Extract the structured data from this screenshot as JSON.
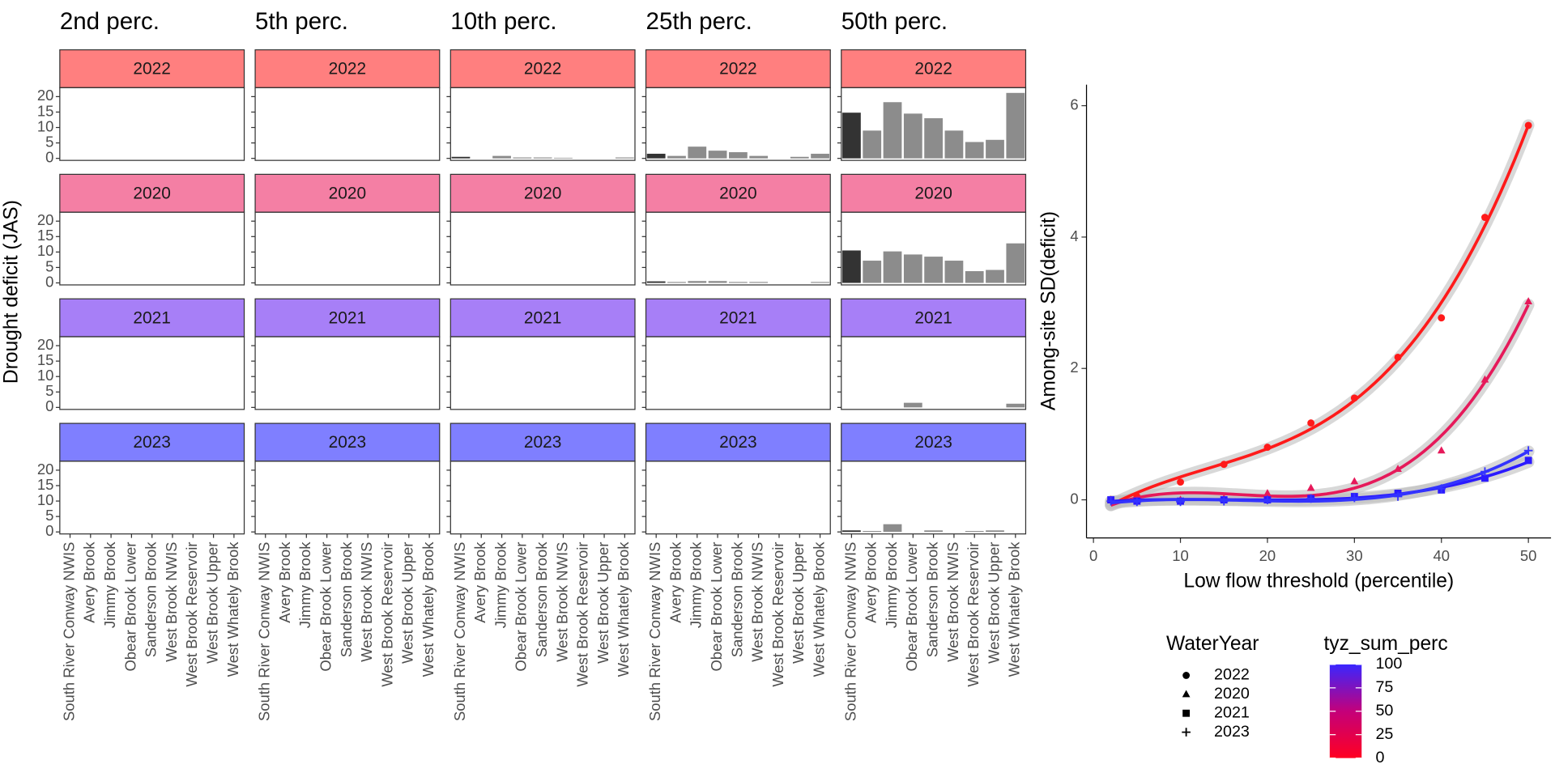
{
  "chart_data": [
    {
      "type": "facet-bar",
      "ylabel": "Drought deficit (JAS)",
      "columns": [
        "2nd perc.",
        "5th perc.",
        "10th perc.",
        "25th perc.",
        "50th perc."
      ],
      "categories": [
        "South River Conway NWIS",
        "Avery Brook",
        "Jimmy Brook",
        "Obear Brook Lower",
        "Sanderson Brook",
        "West Brook NWIS",
        "West Brook Reservoir",
        "West Brook Upper",
        "West Whately Brook"
      ],
      "bar_colors": [
        "#333333",
        "#8c8c8c",
        "#8c8c8c",
        "#8c8c8c",
        "#8c8c8c",
        "#8c8c8c",
        "#8c8c8c",
        "#8c8c8c",
        "#8c8c8c"
      ],
      "ylim": [
        -0.65,
        22.9
      ],
      "yticks": [
        0,
        5,
        10,
        15,
        20
      ],
      "rows": [
        {
          "label": "2022",
          "color": "#ff7f7f",
          "values": [
            [
              0,
              0,
              0,
              0,
              0,
              0,
              0,
              0,
              0
            ],
            [
              0,
              0,
              0,
              0,
              0,
              0,
              0,
              0,
              0
            ],
            [
              0.5,
              0,
              0.8,
              0.3,
              0.3,
              0.2,
              0,
              0,
              0.3
            ],
            [
              1.5,
              0.8,
              3.8,
              2.5,
              2,
              0.8,
              0,
              0.5,
              1.5
            ],
            [
              14.8,
              9,
              18.2,
              14.5,
              13,
              9,
              5.3,
              6,
              21.2
            ]
          ]
        },
        {
          "label": "2020",
          "color": "#f47fa4",
          "values": [
            [
              0,
              0,
              0,
              0,
              0,
              0,
              0,
              0,
              0
            ],
            [
              0,
              0,
              0,
              0,
              0,
              0,
              0,
              0,
              0
            ],
            [
              0,
              0,
              0,
              0,
              0,
              0,
              0,
              0,
              0
            ],
            [
              0.5,
              0.3,
              0.6,
              0.6,
              0.3,
              0.3,
              0,
              0,
              0.3
            ],
            [
              10.5,
              7.2,
              10.2,
              9.2,
              8.5,
              7.2,
              3.8,
              4.2,
              12.8
            ]
          ]
        },
        {
          "label": "2021",
          "color": "#a77ff7",
          "values": [
            [
              0,
              0,
              0,
              0,
              0,
              0,
              0,
              0,
              0
            ],
            [
              0,
              0,
              0,
              0,
              0,
              0,
              0,
              0,
              0
            ],
            [
              0,
              0,
              0,
              0,
              0,
              0,
              0,
              0,
              0
            ],
            [
              0,
              0,
              0,
              0,
              0,
              0,
              0,
              0,
              0
            ],
            [
              0,
              0,
              0,
              1.5,
              0,
              0,
              0,
              0,
              1.2
            ]
          ]
        },
        {
          "label": "2023",
          "color": "#7f7fff",
          "values": [
            [
              0,
              0,
              0,
              0,
              0,
              0,
              0,
              0,
              0
            ],
            [
              0,
              0,
              0,
              0,
              0,
              0,
              0,
              0,
              0
            ],
            [
              0,
              0,
              0,
              0,
              0,
              0,
              0,
              0,
              0
            ],
            [
              0,
              0,
              0,
              0,
              0,
              0,
              0,
              0,
              0
            ],
            [
              0.5,
              0.3,
              2.5,
              0,
              0.5,
              0,
              0.3,
              0.5,
              0
            ]
          ]
        }
      ]
    },
    {
      "type": "scatter-smooth",
      "xlabel": "Low flow threshold (percentile)",
      "ylabel": "Among-site SD(deficit)",
      "x": [
        2,
        5,
        10,
        15,
        20,
        25,
        30,
        35,
        40,
        45,
        50
      ],
      "xlim": [
        -0.8,
        52.6
      ],
      "xticks": [
        0,
        10,
        20,
        30,
        40,
        50
      ],
      "ylim": [
        -0.58,
        6.32
      ],
      "yticks": [
        0,
        2,
        4,
        6
      ],
      "band_color": "#bebebe",
      "shape_legend_title": "WaterYear",
      "series": [
        {
          "name": "2022",
          "shape": "circle",
          "color": "#ff1a1a",
          "values": [
            0,
            0.05,
            0.27,
            0.54,
            0.8,
            1.17,
            1.55,
            2.17,
            2.77,
            4.3,
            5.7
          ]
        },
        {
          "name": "2020",
          "shape": "triangle",
          "color": "#e6195a",
          "values": [
            0,
            0,
            0,
            0.02,
            0.1,
            0.18,
            0.28,
            0.47,
            0.75,
            1.83,
            3.02
          ]
        },
        {
          "name": "2021",
          "shape": "square",
          "color": "#2b1aff",
          "values": [
            0,
            -0.02,
            -0.02,
            0,
            0,
            0.02,
            0.05,
            0.1,
            0.15,
            0.33,
            0.6
          ]
        },
        {
          "name": "2023",
          "shape": "plus",
          "color": "#3333ff",
          "values": [
            -0.02,
            -0.03,
            -0.03,
            -0.02,
            0,
            0.02,
            0.03,
            0.05,
            0.17,
            0.43,
            0.75
          ]
        }
      ],
      "colorbar": {
        "title": "tyz_sum_perc",
        "lim": [
          0,
          100
        ],
        "ticks": [
          0,
          25,
          50,
          75,
          100
        ],
        "colors": [
          "#ff0022",
          "#c4007a",
          "#3a26ff"
        ]
      }
    }
  ]
}
